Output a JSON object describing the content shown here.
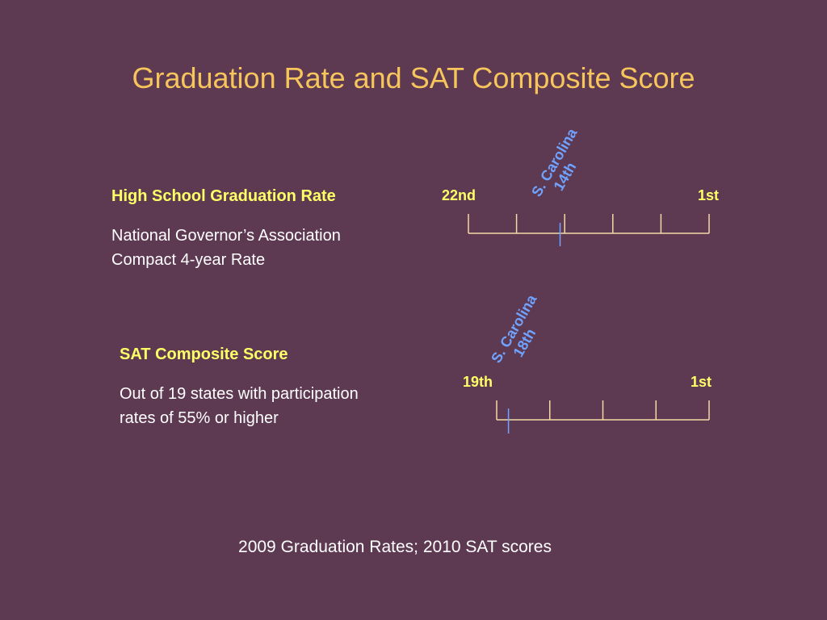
{
  "slide": {
    "title": "Graduation Rate and SAT Composite Score",
    "footnote": "2009 Graduation Rates;  2010 SAT scores"
  },
  "blocks": [
    {
      "heading": "High School Graduation Rate",
      "desc_line1": "National Governor’s Association",
      "desc_line2": "Compact 4-year Rate"
    },
    {
      "heading": "SAT Composite Score",
      "desc_line1": "Out of 19 states with participation",
      "desc_line2": "rates of 55% or higher"
    }
  ],
  "scales": [
    {
      "left_label": "22nd",
      "right_label": "1st",
      "worst_rank": 22,
      "best_rank": 1,
      "tick_count": 6,
      "marker_rank": 14,
      "marker_line1": "S. Carolina",
      "marker_line2": "14th"
    },
    {
      "left_label": "19th",
      "right_label": "1st",
      "worst_rank": 19,
      "best_rank": 1,
      "tick_count": 5,
      "marker_rank": 18,
      "marker_line1": "S. Carolina",
      "marker_line2": "18th"
    }
  ],
  "colors": {
    "background": "#5e3952",
    "title": "#f6c55c",
    "heading": "#ffff66",
    "scale_line": "#f3d9a4",
    "marker": "#6fa3ff"
  }
}
